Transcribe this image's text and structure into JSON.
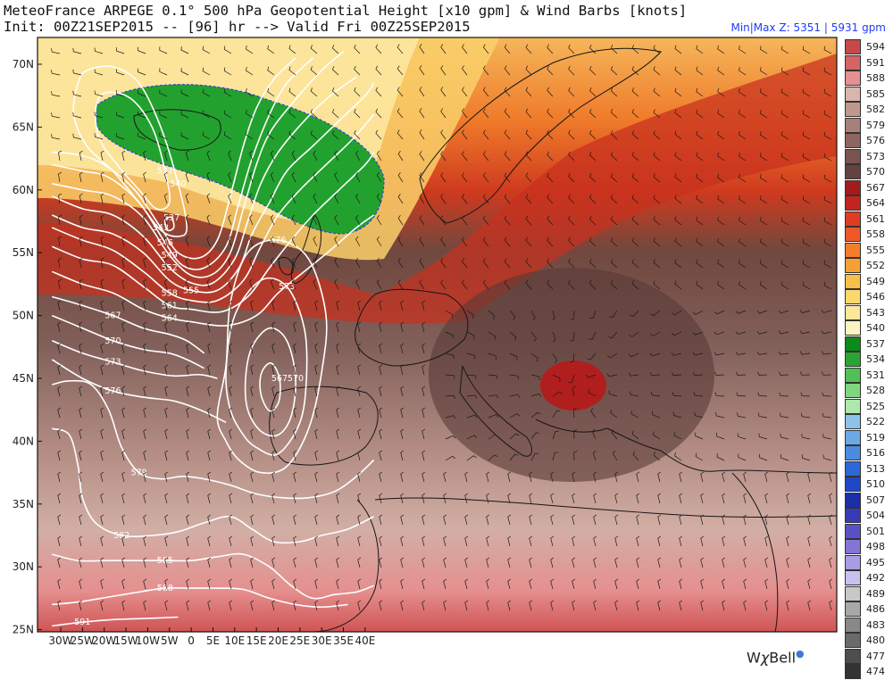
{
  "header": {
    "title_line1": "MeteoFrance ARPEGE 0.1° 500 hPa Geopotential Height [x10 gpm] & Wind Barbs [knots]",
    "title_line2": "Init: 00Z21SEP2015 -- [96] hr --> Valid Fri 00Z25SEP2015",
    "minmax": "Min|Max Z: 5351 | 5931 gpm"
  },
  "axes": {
    "lat_labels": [
      "70N",
      "65N",
      "60N",
      "55N",
      "50N",
      "45N",
      "40N",
      "35N",
      "30N",
      "25N"
    ],
    "lon_labels": [
      "30W",
      "25W",
      "20W",
      "15W",
      "10W",
      "5W",
      "0",
      "5E",
      "10E",
      "15E",
      "20E",
      "25E",
      "30E",
      "35E",
      "40E"
    ]
  },
  "colorbar": {
    "levels": [
      {
        "label": "594",
        "color": "#c8484a"
      },
      {
        "label": "591",
        "color": "#d46565"
      },
      {
        "label": "588",
        "color": "#e69092"
      },
      {
        "label": "585",
        "color": "#d8b6ad"
      },
      {
        "label": "582",
        "color": "#c0988d"
      },
      {
        "label": "579",
        "color": "#a8807a"
      },
      {
        "label": "576",
        "color": "#8e6660"
      },
      {
        "label": "573",
        "color": "#7a5450"
      },
      {
        "label": "570",
        "color": "#634240"
      },
      {
        "label": "567",
        "color": "#a41b1b"
      },
      {
        "label": "564",
        "color": "#c42420"
      },
      {
        "label": "561",
        "color": "#df3c22"
      },
      {
        "label": "558",
        "color": "#ef5828"
      },
      {
        "label": "555",
        "color": "#f47d2c"
      },
      {
        "label": "552",
        "color": "#f6a033"
      },
      {
        "label": "549",
        "color": "#f8c04a"
      },
      {
        "label": "546",
        "color": "#fad86c"
      },
      {
        "label": "543",
        "color": "#fbe89a"
      },
      {
        "label": "540",
        "color": "#fdf4c4"
      },
      {
        "label": "537",
        "color": "#0c8a1a"
      },
      {
        "label": "534",
        "color": "#2ba431"
      },
      {
        "label": "531",
        "color": "#52c055"
      },
      {
        "label": "528",
        "color": "#7fd67e"
      },
      {
        "label": "525",
        "color": "#aee8ac"
      },
      {
        "label": "522",
        "color": "#8fc2ea"
      },
      {
        "label": "519",
        "color": "#6aa8e6"
      },
      {
        "label": "516",
        "color": "#4a8ae0"
      },
      {
        "label": "513",
        "color": "#2e68d8"
      },
      {
        "label": "510",
        "color": "#1f48c8"
      },
      {
        "label": "507",
        "color": "#1a2fa8"
      },
      {
        "label": "504",
        "color": "#3a3ab8"
      },
      {
        "label": "501",
        "color": "#5a50c8"
      },
      {
        "label": "498",
        "color": "#8474d8"
      },
      {
        "label": "495",
        "color": "#a89ce4"
      },
      {
        "label": "492",
        "color": "#c8c0ee"
      },
      {
        "label": "489",
        "color": "#c8c8c8"
      },
      {
        "label": "486",
        "color": "#a8a8a8"
      },
      {
        "label": "483",
        "color": "#888888"
      },
      {
        "label": "480",
        "color": "#6a6a6a"
      },
      {
        "label": "477",
        "color": "#4e4e4e"
      },
      {
        "label": "474",
        "color": "#333333"
      }
    ]
  },
  "contours": [
    {
      "label": "540",
      "points": [
        [
          -24,
          69.5
        ],
        [
          -18,
          69.8
        ],
        [
          -12,
          68.5
        ],
        [
          -7,
          65
        ],
        [
          -3,
          60.5
        ],
        [
          -1,
          57
        ],
        [
          -3,
          56.3
        ],
        [
          -7,
          56.8
        ],
        [
          -12,
          59
        ],
        [
          -18,
          61.5
        ],
        [
          -24,
          63.5
        ],
        [
          -27,
          66
        ],
        [
          -26,
          68.5
        ]
      ],
      "closed": true
    },
    {
      "label": "537",
      "points": [
        [
          -20,
          67.7
        ],
        [
          -14,
          67.3
        ],
        [
          -9,
          65
        ],
        [
          -6,
          61.5
        ],
        [
          -5,
          59
        ],
        [
          -8,
          58.5
        ],
        [
          -12,
          60
        ],
        [
          -17,
          62
        ],
        [
          -21,
          64
        ],
        [
          -22,
          66.3
        ]
      ],
      "closed": true
    },
    {
      "label": "537",
      "points": [
        [
          -6,
          57.6
        ],
        [
          -4.5,
          57.8
        ],
        [
          -4,
          57
        ],
        [
          -5.5,
          56.8
        ]
      ],
      "closed": true
    },
    {
      "label": "543",
      "points": [
        [
          -32,
          63
        ],
        [
          -26,
          62.8
        ],
        [
          -20,
          62
        ],
        [
          -13,
          60
        ],
        [
          -7,
          57
        ],
        [
          -3,
          55
        ],
        [
          2,
          54.6
        ],
        [
          6,
          56
        ],
        [
          9,
          59.5
        ],
        [
          12,
          63.5
        ],
        [
          15,
          66.5
        ],
        [
          19,
          68.8
        ],
        [
          24,
          70.5
        ]
      ],
      "closed": false
    },
    {
      "label": "546",
      "points": [
        [
          -32,
          62
        ],
        [
          -25,
          61.5
        ],
        [
          -19,
          61
        ],
        [
          -12,
          59
        ],
        [
          -6,
          55.8
        ],
        [
          -2,
          54
        ],
        [
          3,
          53.8
        ],
        [
          8,
          55.5
        ],
        [
          11,
          59
        ],
        [
          14,
          62.5
        ],
        [
          18,
          66
        ],
        [
          22,
          68.5
        ],
        [
          28,
          70.5
        ]
      ],
      "closed": false
    },
    {
      "label": "549",
      "points": [
        [
          -32,
          60.5
        ],
        [
          -25,
          60
        ],
        [
          -18,
          59.5
        ],
        [
          -11,
          57.8
        ],
        [
          -5,
          54.8
        ],
        [
          0,
          53.2
        ],
        [
          5,
          53.3
        ],
        [
          9,
          55
        ],
        [
          12,
          58.5
        ],
        [
          15,
          62
        ],
        [
          18,
          64.5
        ],
        [
          23,
          66.8
        ],
        [
          30,
          69.5
        ],
        [
          35,
          71
        ]
      ],
      "closed": false
    },
    {
      "label": "552",
      "points": [
        [
          -32,
          59.5
        ],
        [
          -25,
          58.5
        ],
        [
          -18,
          58
        ],
        [
          -11,
          56.3
        ],
        [
          -5,
          53.8
        ],
        [
          0,
          52.6
        ],
        [
          5,
          52.6
        ],
        [
          10,
          54.5
        ],
        [
          13,
          57.5
        ],
        [
          16,
          60.5
        ],
        [
          20,
          63
        ],
        [
          26,
          65.5
        ],
        [
          32,
          67.5
        ],
        [
          38,
          69
        ]
      ],
      "closed": false
    },
    {
      "label": "555",
      "points": [
        [
          -32,
          58
        ],
        [
          -25,
          57
        ],
        [
          -18,
          56.5
        ],
        [
          -11,
          55
        ],
        [
          -5,
          52.8
        ],
        [
          0,
          52
        ],
        [
          6,
          52
        ],
        [
          11,
          53.8
        ],
        [
          14,
          56.5
        ],
        [
          18,
          59
        ],
        [
          22,
          61.5
        ],
        [
          28,
          63.5
        ],
        [
          34,
          65.5
        ],
        [
          40,
          67.5
        ],
        [
          42,
          68.5
        ]
      ],
      "closed": false
    },
    {
      "label": "558",
      "points": [
        [
          -32,
          57
        ],
        [
          -25,
          56
        ],
        [
          -18,
          55.2
        ],
        [
          -11,
          53.5
        ],
        [
          -5,
          51.8
        ],
        [
          0,
          51.2
        ],
        [
          6,
          51.2
        ],
        [
          12,
          52.8
        ],
        [
          16,
          55.5
        ],
        [
          20,
          58
        ],
        [
          25,
          60
        ],
        [
          31,
          62
        ],
        [
          37,
          64
        ],
        [
          42,
          66
        ]
      ],
      "closed": false
    },
    {
      "label": "561",
      "points": [
        [
          -32,
          55.5
        ],
        [
          -25,
          54.5
        ],
        [
          -18,
          54
        ],
        [
          -11,
          52.3
        ],
        [
          -5,
          50.8
        ],
        [
          0,
          50.5
        ],
        [
          7,
          50.3
        ],
        [
          13,
          51.5
        ],
        [
          18,
          53.8
        ],
        [
          23,
          56
        ],
        [
          28,
          58
        ],
        [
          34,
          60
        ],
        [
          40,
          62
        ],
        [
          42,
          63
        ]
      ],
      "closed": false
    },
    {
      "label": "564",
      "points": [
        [
          -32,
          53.5
        ],
        [
          -25,
          52.5
        ],
        [
          -18,
          51.8
        ],
        [
          -11,
          50.5
        ],
        [
          -5,
          49.8
        ],
        [
          0,
          49.5
        ],
        [
          8,
          49.2
        ],
        [
          15,
          50
        ],
        [
          20,
          51.8
        ],
        [
          26,
          53.5
        ],
        [
          32,
          55.2
        ],
        [
          38,
          57
        ],
        [
          42,
          58
        ]
      ],
      "closed": false
    },
    {
      "label": "567",
      "points": [
        [
          -32,
          51.5
        ],
        [
          -25,
          50.8
        ],
        [
          -18,
          50
        ],
        [
          -11,
          49
        ],
        [
          -5,
          48.5
        ],
        [
          -1,
          48
        ],
        [
          3,
          47
        ]
      ],
      "closed": false
    },
    {
      "label": "570",
      "points": [
        [
          -32,
          50
        ],
        [
          -25,
          49
        ],
        [
          -18,
          48
        ],
        [
          -11,
          47.3
        ],
        [
          -5,
          47
        ],
        [
          -1,
          46.5
        ],
        [
          3,
          45.8
        ]
      ],
      "closed": false
    },
    {
      "label": "573",
      "points": [
        [
          -32,
          48
        ],
        [
          -25,
          47
        ],
        [
          -18,
          46.3
        ],
        [
          -11,
          45.6
        ],
        [
          -4,
          45.2
        ],
        [
          2,
          45.3
        ],
        [
          6,
          45
        ]
      ],
      "closed": false
    },
    {
      "label": "576",
      "points": [
        [
          -32,
          46.5
        ],
        [
          -25,
          45
        ],
        [
          -18,
          44
        ],
        [
          -11,
          43.5
        ],
        [
          -4,
          43.2
        ],
        [
          2,
          42.5
        ],
        [
          8,
          41.5
        ]
      ],
      "closed": false
    },
    {
      "label": "579",
      "points": [
        [
          -32,
          44.5
        ],
        [
          -28,
          44.8
        ],
        [
          -23,
          44.5
        ],
        [
          -19,
          42.5
        ],
        [
          -16,
          39.5
        ],
        [
          -12,
          37.5
        ],
        [
          -7,
          37
        ],
        [
          -2,
          37.2
        ],
        [
          3,
          37
        ],
        [
          9,
          36.5
        ],
        [
          15,
          35.8
        ],
        [
          21,
          35.5
        ],
        [
          27,
          35.5
        ],
        [
          33,
          36
        ],
        [
          38,
          37.2
        ],
        [
          42,
          38.5
        ]
      ],
      "closed": false
    },
    {
      "label": "582",
      "points": [
        [
          -32,
          41
        ],
        [
          -28,
          40.5
        ],
        [
          -26,
          38
        ],
        [
          -25,
          35.5
        ],
        [
          -22,
          33.5
        ],
        [
          -16,
          32.5
        ],
        [
          -9,
          32.5
        ],
        [
          -3,
          32.8
        ],
        [
          3,
          33.5
        ],
        [
          9,
          34
        ],
        [
          14,
          33
        ],
        [
          19,
          32
        ],
        [
          25,
          32
        ],
        [
          30,
          32.5
        ],
        [
          36,
          33
        ],
        [
          42,
          34
        ]
      ],
      "closed": false
    },
    {
      "label": "585",
      "points": [
        [
          -32,
          31
        ],
        [
          -26,
          30.5
        ],
        [
          -19,
          30.5
        ],
        [
          -12,
          30.5
        ],
        [
          -6,
          30.5
        ],
        [
          0,
          30.5
        ],
        [
          6,
          30.8
        ],
        [
          12,
          31
        ],
        [
          18,
          30
        ],
        [
          23,
          28.5
        ],
        [
          28,
          27.5
        ],
        [
          33,
          27.8
        ],
        [
          38,
          28
        ],
        [
          42,
          28.5
        ]
      ],
      "closed": false
    },
    {
      "label": "588",
      "points": [
        [
          -32,
          27
        ],
        [
          -26,
          27.2
        ],
        [
          -19,
          27.6
        ],
        [
          -12,
          28
        ],
        [
          -6,
          28.3
        ],
        [
          0,
          28.3
        ],
        [
          6,
          28.3
        ],
        [
          12,
          28.2
        ],
        [
          18,
          27.5
        ],
        [
          24,
          27
        ],
        [
          30,
          26.8
        ],
        [
          36,
          27
        ]
      ],
      "closed": false
    },
    {
      "label": "591",
      "points": [
        [
          -32,
          25.3
        ],
        [
          -25,
          25.6
        ],
        [
          -18,
          25.8
        ],
        [
          -10,
          25.9
        ],
        [
          -3,
          26
        ]
      ],
      "closed": false
    },
    {
      "label": "567",
      "points": [
        [
          16.5,
          45.7
        ],
        [
          18.5,
          46.2
        ],
        [
          20.3,
          45
        ],
        [
          20.2,
          43.2
        ],
        [
          18.2,
          42.4
        ],
        [
          16.4,
          43.3
        ],
        [
          15.8,
          44.6
        ]
      ],
      "closed": true
    },
    {
      "label": "570",
      "points": [
        [
          14,
          47.5
        ],
        [
          18,
          49
        ],
        [
          22,
          48
        ],
        [
          24,
          45
        ],
        [
          23,
          42
        ],
        [
          20,
          40.5
        ],
        [
          16,
          40.8
        ],
        [
          13,
          42.5
        ],
        [
          12.5,
          45
        ]
      ],
      "closed": true
    },
    {
      "label": "573",
      "points": [
        [
          8,
          45.5
        ],
        [
          10,
          50
        ],
        [
          16,
          52.8
        ],
        [
          22,
          52.3
        ],
        [
          26,
          49
        ],
        [
          26.5,
          45
        ],
        [
          25,
          41.5
        ],
        [
          20,
          39
        ],
        [
          15,
          39.5
        ],
        [
          12,
          40.5
        ],
        [
          9,
          42.5
        ]
      ],
      "closed": true
    },
    {
      "label": "576",
      "points": [
        [
          6,
          42
        ],
        [
          8,
          46
        ],
        [
          9,
          51
        ],
        [
          13,
          55
        ],
        [
          20,
          56
        ],
        [
          27,
          54.5
        ],
        [
          31,
          50
        ],
        [
          30,
          45.5
        ],
        [
          27,
          41
        ],
        [
          22,
          38
        ],
        [
          16,
          37.5
        ],
        [
          11,
          38.5
        ],
        [
          8,
          40
        ]
      ],
      "closed": true
    }
  ]
}
